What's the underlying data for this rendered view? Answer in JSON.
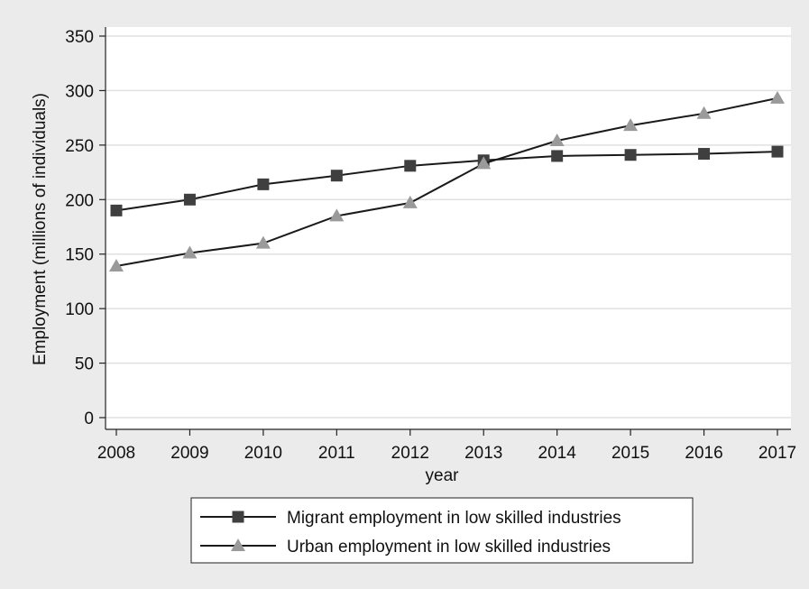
{
  "chart_data": {
    "type": "line",
    "xlabel": "year",
    "ylabel": "Employment (millions of individuals)",
    "x": [
      2008,
      2009,
      2010,
      2011,
      2012,
      2013,
      2014,
      2015,
      2016,
      2017
    ],
    "xlim": [
      2008,
      2017
    ],
    "ylim": [
      0,
      350
    ],
    "yticks": [
      0,
      50,
      100,
      150,
      200,
      250,
      300,
      350
    ],
    "grid": true,
    "legend_position": "bottom",
    "series": [
      {
        "name": "Migrant employment in low skilled industries",
        "marker": "square",
        "color": "#3f3f3f",
        "values": [
          190,
          200,
          214,
          222,
          231,
          236,
          240,
          241,
          242,
          244
        ]
      },
      {
        "name": "Urban employment in low skilled industries",
        "marker": "triangle",
        "color": "#9a9a9a",
        "values": [
          139,
          151,
          160,
          185,
          197,
          233,
          254,
          268,
          279,
          293
        ]
      }
    ]
  }
}
